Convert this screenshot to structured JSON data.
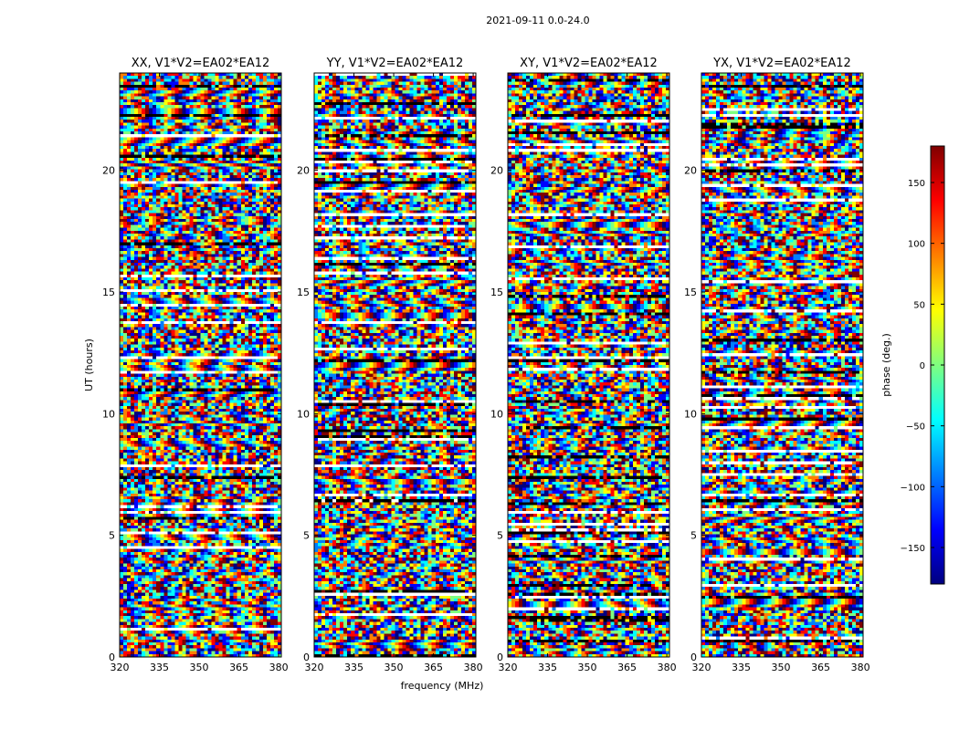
{
  "figure_title": "2021-09-11 0.0-24.0",
  "chart_data": {
    "type": "heatmap",
    "title": "2021-09-11 0.0-24.0",
    "xlabel": "frequency (MHz)",
    "ylabel": "UT (hours)",
    "xlim": [
      320,
      381
    ],
    "ylim": [
      0,
      24
    ],
    "xticks": [
      "320",
      "335",
      "350",
      "365",
      "380"
    ],
    "xtick_values": [
      320,
      335,
      350,
      365,
      380
    ],
    "yticks": [
      "0",
      "5",
      "10",
      "15",
      "20"
    ],
    "ytick_values": [
      0,
      5,
      10,
      15,
      20
    ],
    "panels": [
      {
        "title": "XX, V1*V2=EA02*EA12"
      },
      {
        "title": "YY, V1*V2=EA02*EA12"
      },
      {
        "title": "XY, V1*V2=EA02*EA12"
      },
      {
        "title": "YX, V1*V2=EA02*EA12"
      }
    ],
    "colorbar": {
      "label": "phase (deg.)",
      "range": [
        -180,
        180
      ],
      "ticks": [
        "150",
        "100",
        "50",
        "0",
        "−50",
        "−100",
        "−150"
      ],
      "tick_values": [
        150,
        100,
        50,
        0,
        -50,
        -100,
        -150
      ],
      "colormap": [
        "#00007f",
        "#0000ff",
        "#007fff",
        "#00ffff",
        "#7fff7f",
        "#ffff00",
        "#ff7f00",
        "#ff0000",
        "#7f0000"
      ]
    }
  }
}
